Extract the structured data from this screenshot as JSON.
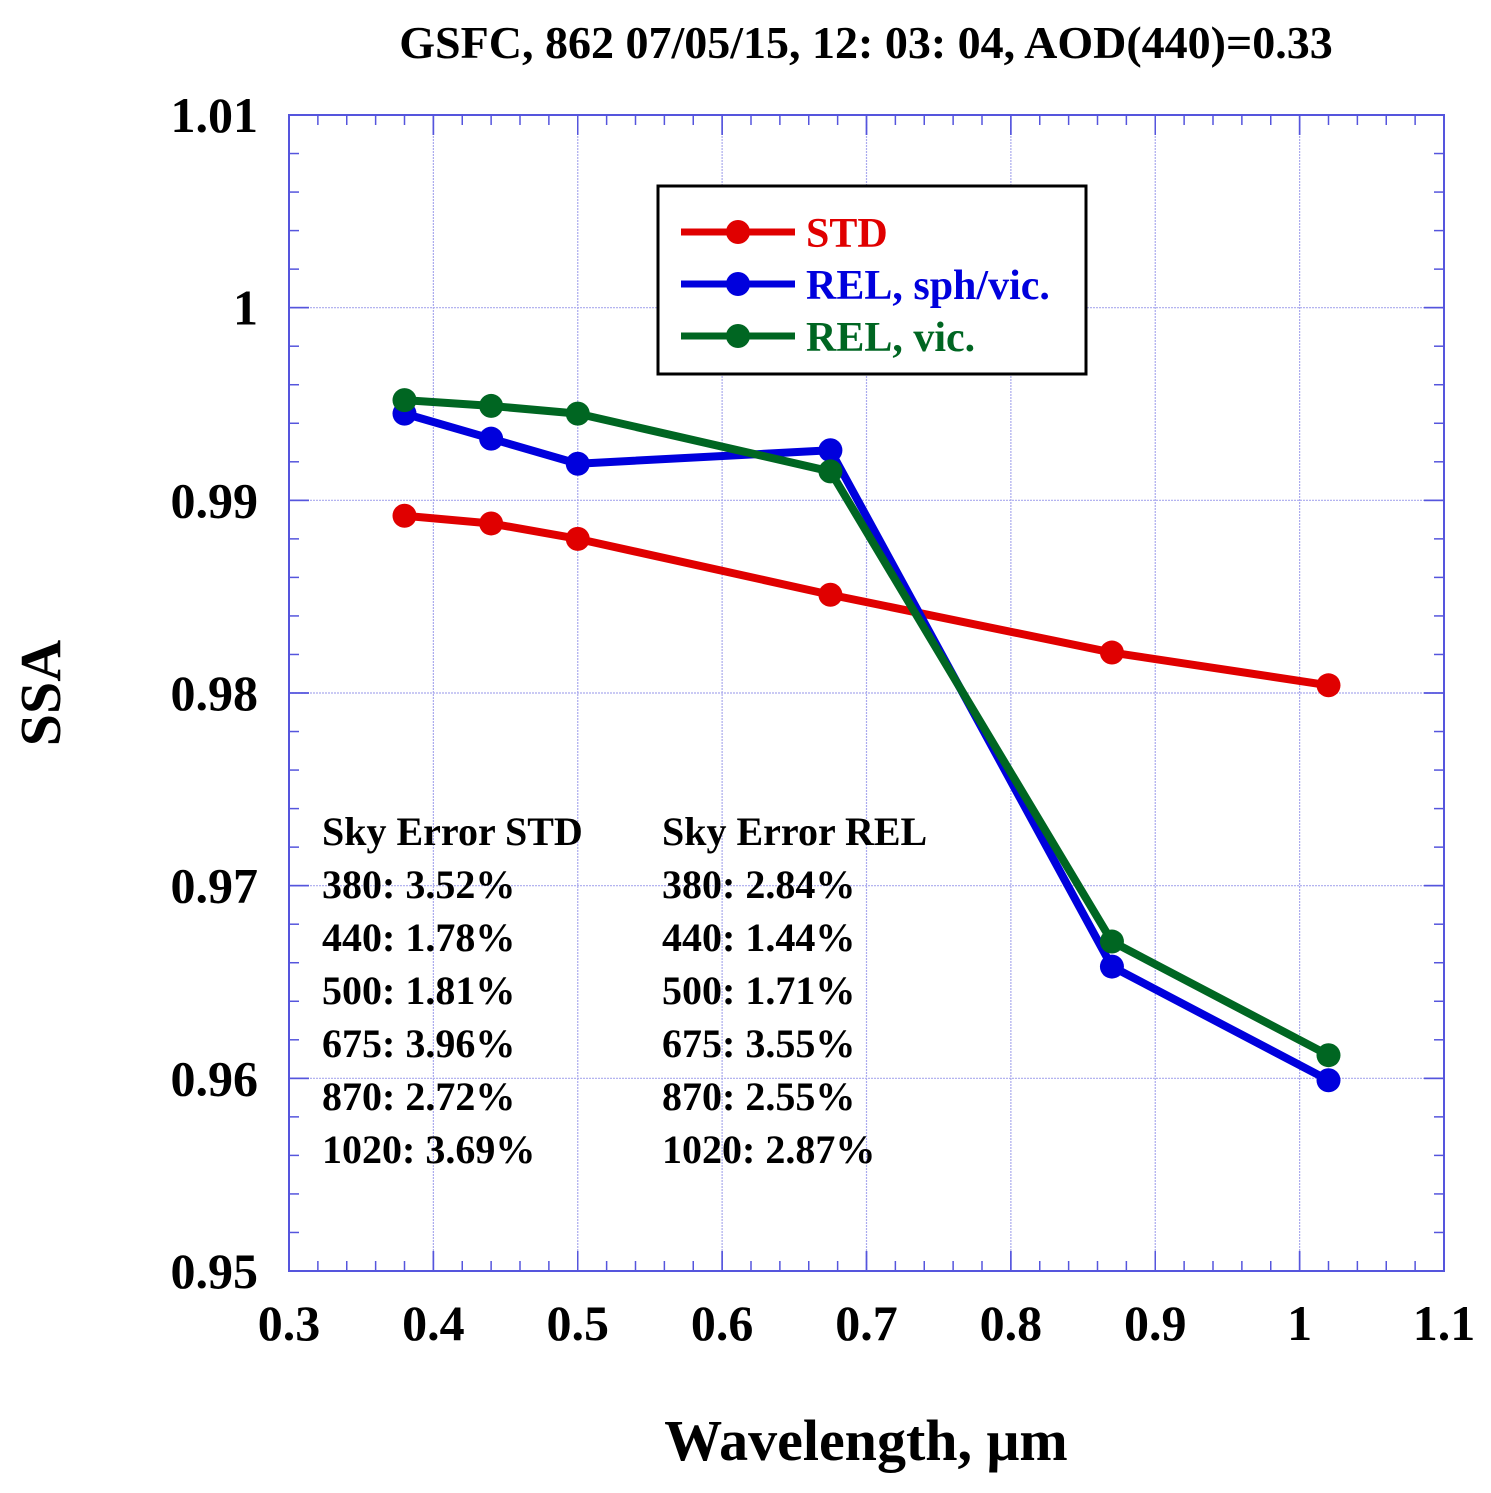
{
  "chart_data": {
    "type": "line",
    "title": "GSFC, 862 07/05/15, 12: 03: 04, AOD(440)=0.33",
    "xlabel": "Wavelength, μm",
    "ylabel": "SSA",
    "xlim": [
      0.3,
      1.1
    ],
    "ylim": [
      0.95,
      1.01
    ],
    "x_ticks": [
      0.3,
      0.4,
      0.5,
      0.6,
      0.7,
      0.8,
      0.9,
      1.0,
      1.1
    ],
    "x_tick_labels": [
      "0.3",
      "0.4",
      "0.5",
      "0.6",
      "0.7",
      "0.8",
      "0.9",
      "1",
      "1.1"
    ],
    "y_ticks": [
      0.95,
      0.96,
      0.97,
      0.98,
      0.99,
      1.0,
      1.01
    ],
    "y_tick_labels": [
      "0.95",
      "0.96",
      "0.97",
      "0.98",
      "0.99",
      "1",
      "1.01"
    ],
    "x_minor_per_major": 5,
    "y_minor_per_major": 5,
    "grid": true,
    "legend_position": "top-center",
    "x": [
      0.38,
      0.44,
      0.5,
      0.675,
      0.87,
      1.02
    ],
    "series": [
      {
        "name": "STD",
        "color": "#e00000",
        "values": [
          0.9892,
          0.9888,
          0.988,
          0.9851,
          0.9821,
          0.9804
        ]
      },
      {
        "name": "REL, sph/vic.",
        "color": "#0000dd",
        "values": [
          0.9945,
          0.9932,
          0.9919,
          0.9926,
          0.9658,
          0.9599
        ]
      },
      {
        "name": "REL, vic.",
        "color": "#006622",
        "values": [
          0.9952,
          0.9949,
          0.9945,
          0.9915,
          0.9671,
          0.9612
        ]
      }
    ],
    "annotations": {
      "std_errors": {
        "header": "Sky Error STD",
        "lines": [
          "380: 3.52%",
          "440: 1.78%",
          "500: 1.81%",
          "675: 3.96%",
          "870: 2.72%",
          "1020: 3.69%"
        ]
      },
      "rel_errors": {
        "header": "Sky Error REL",
        "lines": [
          "380: 2.84%",
          "440: 1.44%",
          "500: 1.71%",
          "675: 3.55%",
          "870: 2.55%",
          "1020: 2.87%"
        ]
      }
    },
    "colors": {
      "axis": "#5555dd",
      "grid": "#aaaaee",
      "text": "#000000"
    }
  }
}
